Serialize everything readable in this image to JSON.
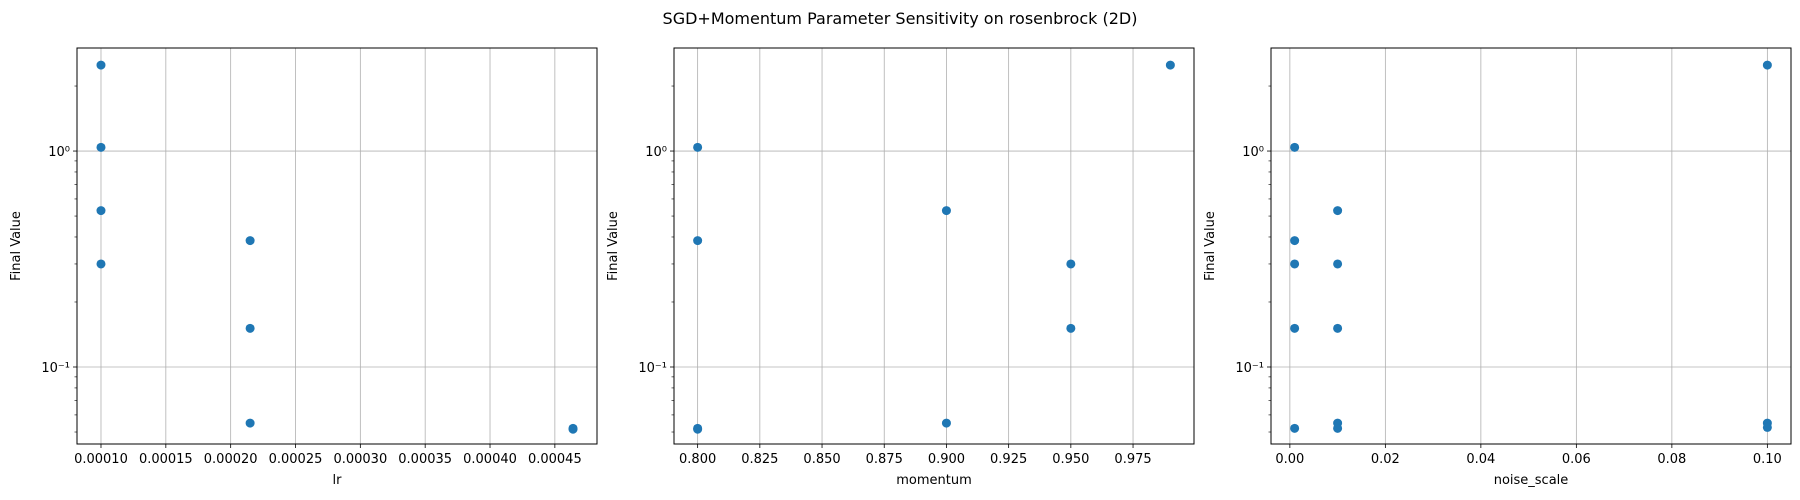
{
  "suptitle": "SGD+Momentum Parameter Sensitivity on rosenbrock (2D)",
  "chart_data": [
    {
      "type": "scatter",
      "xlabel": "lr",
      "ylabel": "Final Value",
      "yscale": "log",
      "grid": true,
      "xlim": [
        8.15e-05,
        0.0004825
      ],
      "ylim": [
        0.044,
        3.0
      ],
      "xticks": [
        0.0001,
        0.00015,
        0.0002,
        0.00025,
        0.0003,
        0.00035,
        0.0004,
        0.00045
      ],
      "xtick_labels": [
        "0.00010",
        "0.00015",
        "0.00020",
        "0.00025",
        "0.00030",
        "0.00035",
        "0.00040",
        "0.00045"
      ],
      "yticks": [
        1,
        0.1
      ],
      "ytick_labels": [
        "10⁰",
        "10⁻¹"
      ],
      "color": "#1f77b4",
      "points": [
        {
          "x": 0.0001,
          "y": 2.5
        },
        {
          "x": 0.0001,
          "y": 1.04
        },
        {
          "x": 0.0001,
          "y": 0.53
        },
        {
          "x": 0.0001,
          "y": 0.3
        },
        {
          "x": 0.000215,
          "y": 0.385
        },
        {
          "x": 0.000215,
          "y": 0.151
        },
        {
          "x": 0.000215,
          "y": 0.055
        },
        {
          "x": 0.000464,
          "y": 0.052
        },
        {
          "x": 0.000464,
          "y": 0.0515
        }
      ]
    },
    {
      "type": "scatter",
      "xlabel": "momentum",
      "ylabel": "Final Value",
      "yscale": "log",
      "grid": true,
      "xlim": [
        0.7905,
        0.9995
      ],
      "ylim": [
        0.044,
        3.0
      ],
      "xticks": [
        0.8,
        0.825,
        0.85,
        0.875,
        0.9,
        0.925,
        0.95,
        0.975
      ],
      "xtick_labels": [
        "0.800",
        "0.825",
        "0.850",
        "0.875",
        "0.900",
        "0.925",
        "0.950",
        "0.975"
      ],
      "yticks": [
        1,
        0.1
      ],
      "ytick_labels": [
        "10⁰",
        "10⁻¹"
      ],
      "color": "#1f77b4",
      "points": [
        {
          "x": 0.8,
          "y": 1.04
        },
        {
          "x": 0.8,
          "y": 0.385
        },
        {
          "x": 0.8,
          "y": 0.052
        },
        {
          "x": 0.8,
          "y": 0.0515
        },
        {
          "x": 0.9,
          "y": 0.53
        },
        {
          "x": 0.9,
          "y": 0.055
        },
        {
          "x": 0.95,
          "y": 0.3
        },
        {
          "x": 0.95,
          "y": 0.151
        },
        {
          "x": 0.99,
          "y": 2.5
        }
      ]
    },
    {
      "type": "scatter",
      "xlabel": "noise_scale",
      "ylabel": "Final Value",
      "yscale": "log",
      "grid": true,
      "xlim": [
        -0.00395,
        0.10495
      ],
      "ylim": [
        0.044,
        3.0
      ],
      "xticks": [
        0.0,
        0.02,
        0.04,
        0.06,
        0.08,
        0.1
      ],
      "xtick_labels": [
        "0.00",
        "0.02",
        "0.04",
        "0.06",
        "0.08",
        "0.10"
      ],
      "yticks": [
        1,
        0.1
      ],
      "ytick_labels": [
        "10⁰",
        "10⁻¹"
      ],
      "color": "#1f77b4",
      "points": [
        {
          "x": 0.001,
          "y": 1.04
        },
        {
          "x": 0.001,
          "y": 0.385
        },
        {
          "x": 0.001,
          "y": 0.3
        },
        {
          "x": 0.001,
          "y": 0.151
        },
        {
          "x": 0.001,
          "y": 0.052
        },
        {
          "x": 0.01,
          "y": 0.53
        },
        {
          "x": 0.01,
          "y": 0.3
        },
        {
          "x": 0.01,
          "y": 0.151
        },
        {
          "x": 0.01,
          "y": 0.055
        },
        {
          "x": 0.01,
          "y": 0.052
        },
        {
          "x": 0.1,
          "y": 2.5
        },
        {
          "x": 0.1,
          "y": 0.055
        },
        {
          "x": 0.1,
          "y": 0.0525
        }
      ]
    }
  ]
}
